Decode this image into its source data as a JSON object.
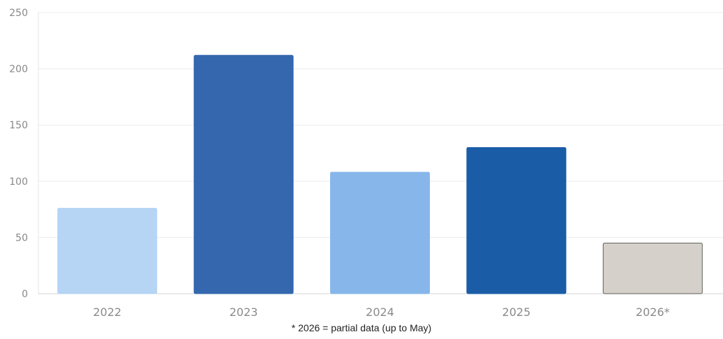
{
  "chart_data": {
    "type": "bar",
    "categories": [
      "2022",
      "2023",
      "2024",
      "2025",
      "2026*"
    ],
    "values": [
      76,
      212,
      108,
      130,
      45
    ],
    "ylim": [
      0,
      250
    ],
    "yticks": [
      0,
      50,
      100,
      150,
      200,
      250
    ],
    "grid": true,
    "bar_colors": [
      "#b6d4f4",
      "#3467ae",
      "#87b7ea",
      "#1b5ca6",
      "#d5d1ca"
    ],
    "bar_borders": [
      "#b6d4f4",
      "#3467ae",
      "#87b7ea",
      "#1b5ca6",
      "#5f5f5a"
    ],
    "footnote": "* 2026 = partial data (up to May)"
  }
}
